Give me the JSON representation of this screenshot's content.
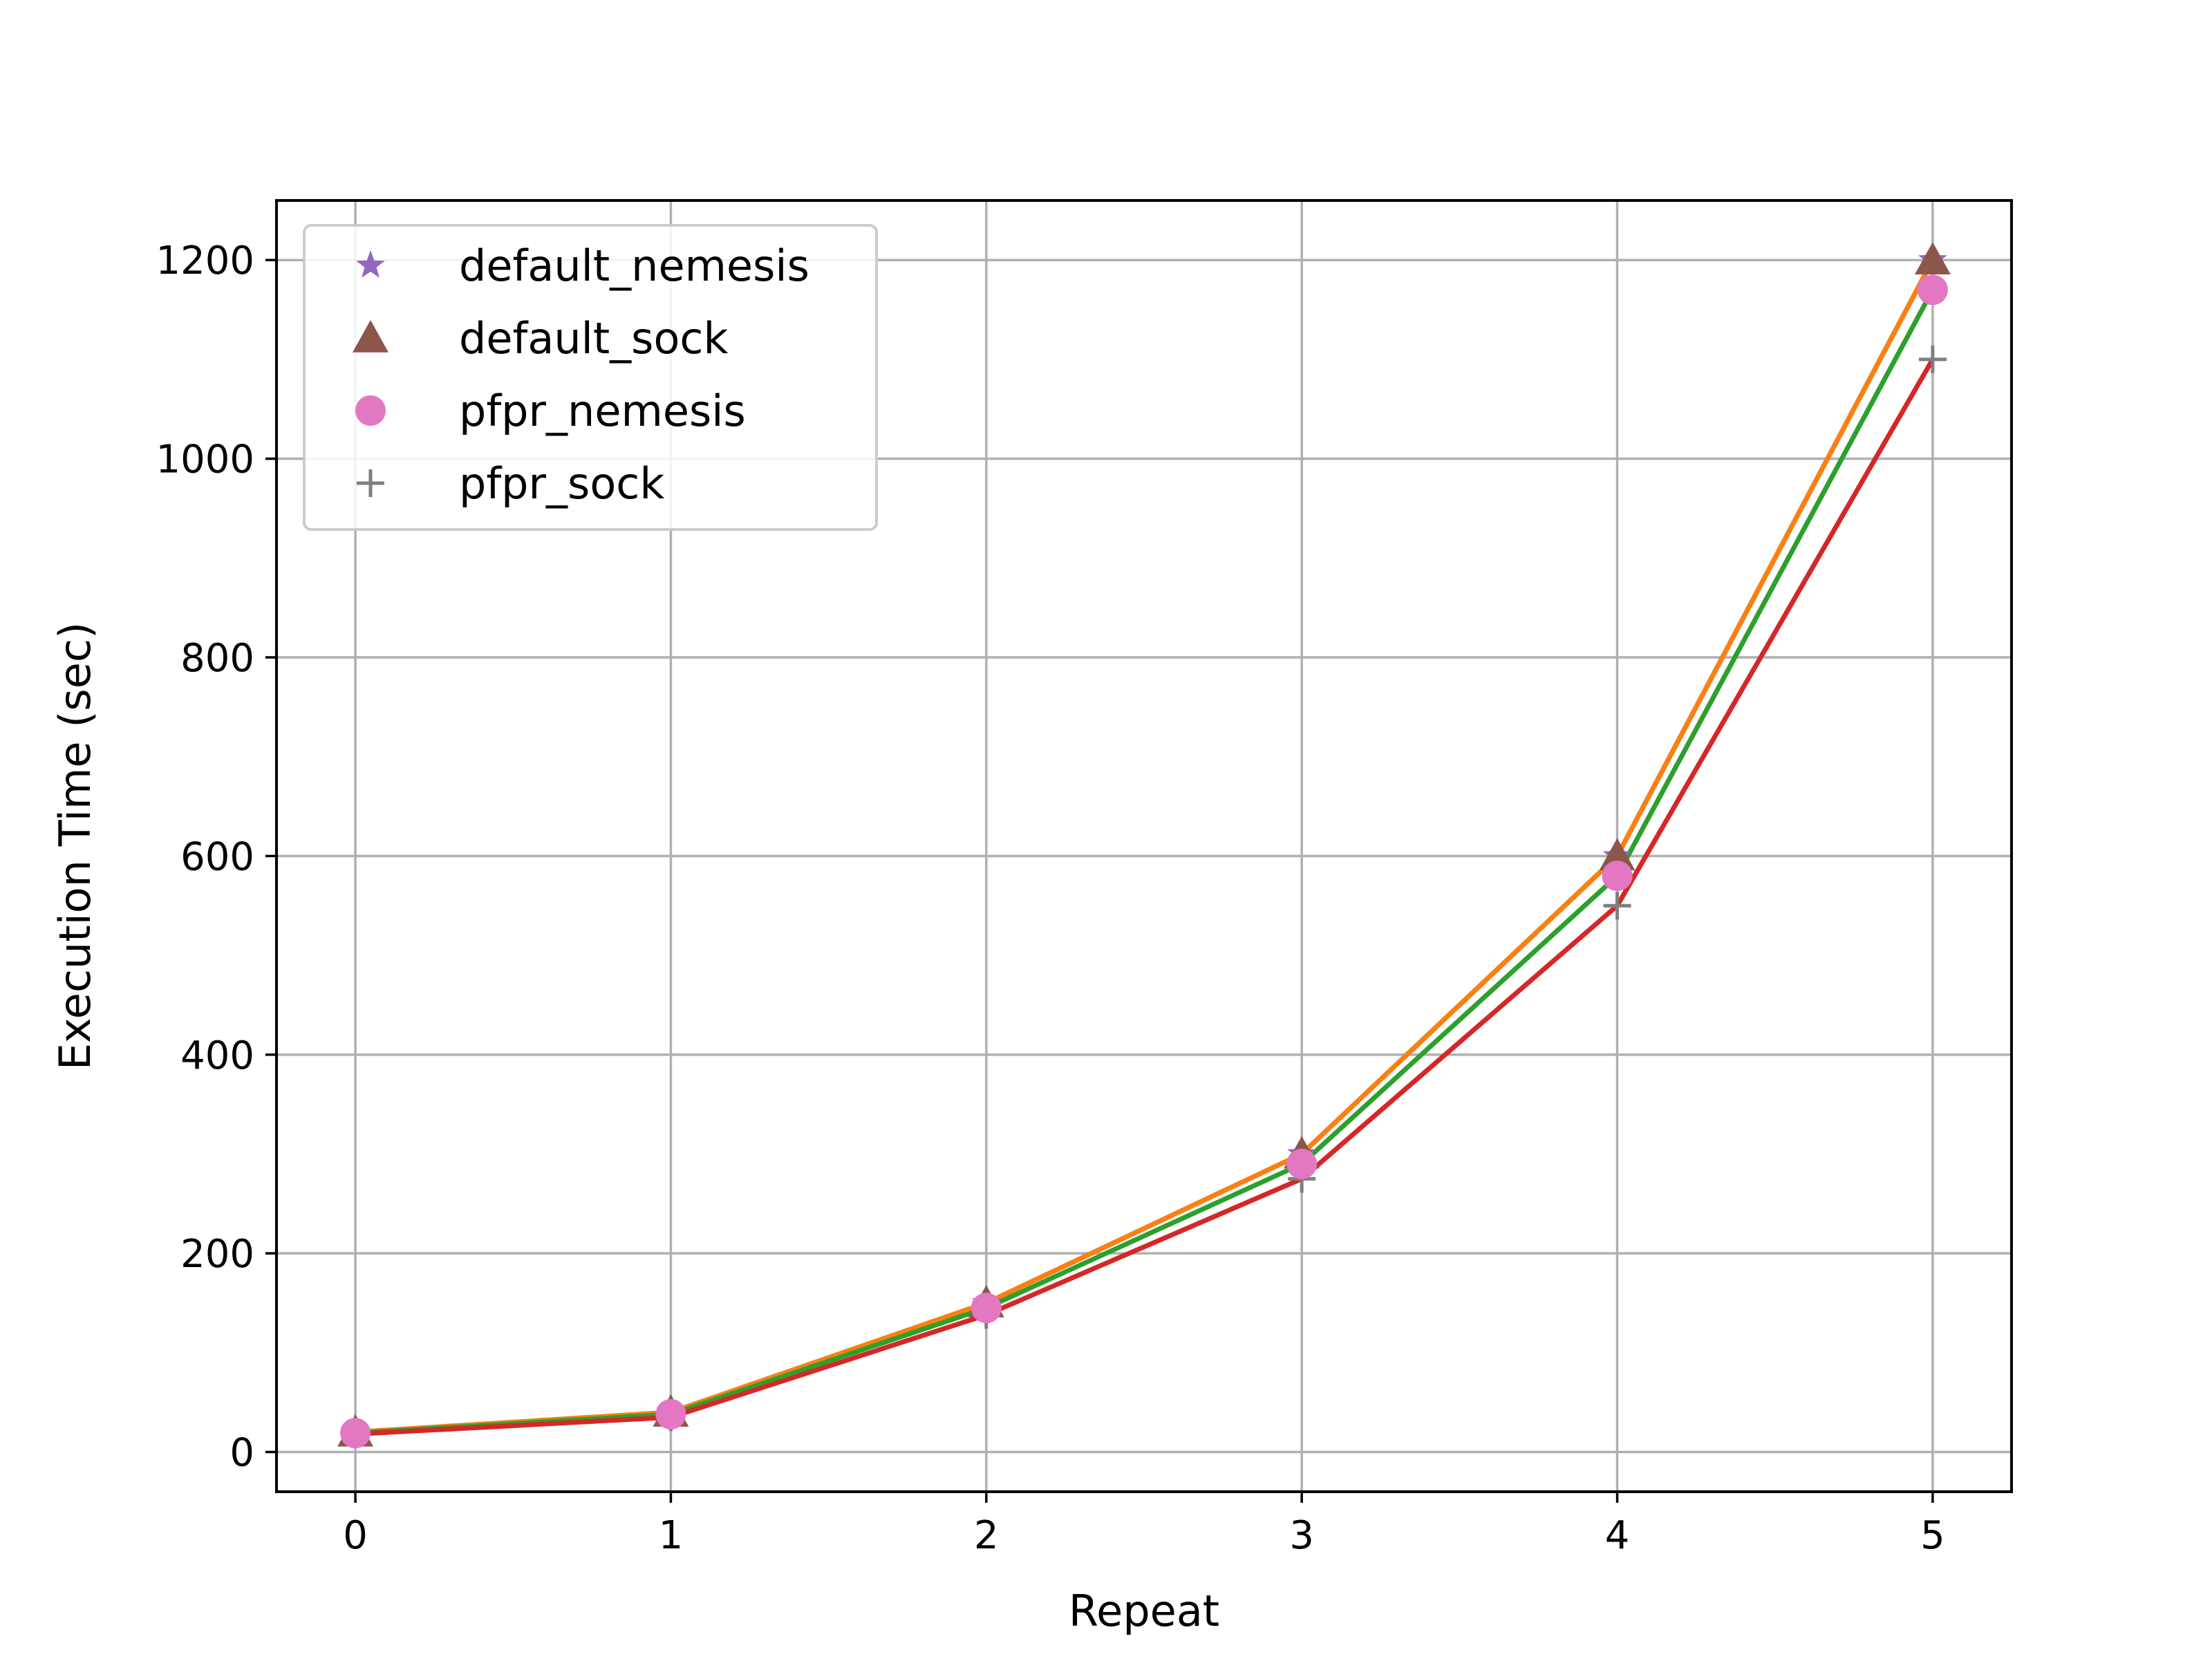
{
  "chart_data": {
    "type": "line",
    "title": "",
    "xlabel": "Repeat",
    "ylabel": "Execution Time (sec)",
    "x": [
      0,
      1,
      2,
      3,
      4,
      5
    ],
    "xlim": [
      -0.25,
      5.25
    ],
    "ylim": [
      -40,
      1260
    ],
    "xticks": [
      0,
      1,
      2,
      3,
      4,
      5
    ],
    "yticks": [
      0,
      200,
      400,
      600,
      800,
      1000,
      1200
    ],
    "grid": true,
    "legend_position": "top-left",
    "lines": [
      {
        "color": "#1f77b4",
        "values": [
          20,
          40,
          150,
          300,
          600,
          1200
        ]
      },
      {
        "color": "#ff7f0e",
        "values": [
          20,
          40,
          150,
          300,
          600,
          1200
        ]
      },
      {
        "color": "#2ca02c",
        "values": [
          19,
          38,
          145,
          290,
          580,
          1170
        ]
      },
      {
        "color": "#d62728",
        "values": [
          18,
          35,
          138,
          275,
          550,
          1100
        ]
      }
    ],
    "series": [
      {
        "name": "default_nemesis",
        "marker": "star",
        "color": "#9467bd",
        "values": [
          20,
          40,
          150,
          300,
          600,
          1200
        ]
      },
      {
        "name": "default_sock",
        "marker": "triangle",
        "color": "#8c564b",
        "values": [
          20,
          40,
          150,
          300,
          600,
          1200
        ]
      },
      {
        "name": "pfpr_nemesis",
        "marker": "circle",
        "color": "#e377c2",
        "values": [
          19,
          38,
          145,
          290,
          580,
          1170
        ]
      },
      {
        "name": "pfpr_sock",
        "marker": "plus",
        "color": "#7f7f7f",
        "values": [
          18,
          35,
          138,
          275,
          550,
          1100
        ]
      }
    ]
  }
}
